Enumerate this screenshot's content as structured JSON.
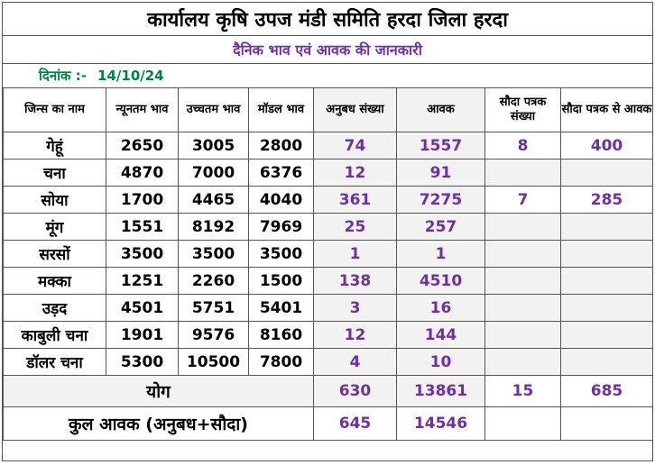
{
  "header": {
    "title": "कार्यालय कृषि उपज मंडी समिति हरदा जिला हरदा",
    "subtitle": "दैनिक भाव एवं आवक की जानकारी",
    "date_label": "दिनांक :-",
    "date_value": "14/10/24"
  },
  "table": {
    "columns": [
      "जिन्स का नाम",
      "न्यूनतम भाव",
      "उच्चतम भाव",
      "मॉडल भाव",
      "अनुबध संख्या",
      "आवक",
      "सौदा पत्रक संख्या",
      "सौदा पत्रक से आवक"
    ],
    "rows": [
      {
        "name": "गेहूं",
        "min": "2650",
        "max": "3005",
        "model": "2800",
        "anubadh": "74",
        "aavak": "1557",
        "sauda_sankhya": "8",
        "sauda_aavak": "400"
      },
      {
        "name": "चना",
        "min": "4870",
        "max": "7000",
        "model": "6376",
        "anubadh": "12",
        "aavak": "91",
        "sauda_sankhya": "",
        "sauda_aavak": ""
      },
      {
        "name": "सोया",
        "min": "1700",
        "max": "4465",
        "model": "4040",
        "anubadh": "361",
        "aavak": "7275",
        "sauda_sankhya": "7",
        "sauda_aavak": "285"
      },
      {
        "name": "मूंग",
        "min": "1551",
        "max": "8192",
        "model": "7969",
        "anubadh": "25",
        "aavak": "257",
        "sauda_sankhya": "",
        "sauda_aavak": ""
      },
      {
        "name": "सरसों",
        "min": "3500",
        "max": "3500",
        "model": "3500",
        "anubadh": "1",
        "aavak": "1",
        "sauda_sankhya": "",
        "sauda_aavak": ""
      },
      {
        "name": "मक्का",
        "min": "1251",
        "max": "2260",
        "model": "1500",
        "anubadh": "138",
        "aavak": "4510",
        "sauda_sankhya": "",
        "sauda_aavak": ""
      },
      {
        "name": "उड़द",
        "min": "4501",
        "max": "5751",
        "model": "5401",
        "anubadh": "3",
        "aavak": "16",
        "sauda_sankhya": "",
        "sauda_aavak": ""
      },
      {
        "name": "काबुली चना",
        "min": "1901",
        "max": "9576",
        "model": "8160",
        "anubadh": "12",
        "aavak": "144",
        "sauda_sankhya": "",
        "sauda_aavak": ""
      },
      {
        "name": "डॉलर चना",
        "min": "5300",
        "max": "10500",
        "model": "7800",
        "anubadh": "4",
        "aavak": "10",
        "sauda_sankhya": "",
        "sauda_aavak": ""
      }
    ],
    "total": {
      "label": "योग",
      "anubadh": "630",
      "aavak": "13861",
      "sauda_sankhya": "15",
      "sauda_aavak": "685"
    },
    "grand_total": {
      "label": "कुल आवक (अनुबध+सौदा)",
      "anubadh": "645",
      "aavak": "14546"
    }
  },
  "colors": {
    "purple": "#7030a0",
    "green": "#00843d",
    "grey_fill": "#f2f2f2"
  }
}
